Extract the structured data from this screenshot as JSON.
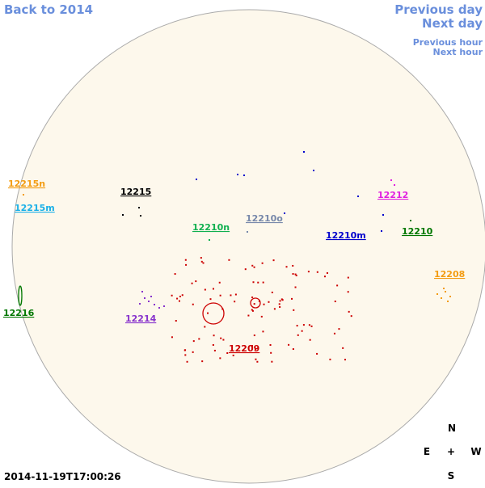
{
  "navigation": {
    "back": "Back to 2014",
    "previous_day": "Previous day",
    "next_day": "Next day",
    "previous_hour": "Previous hour",
    "next_hour": "Next hour"
  },
  "regions": [
    "12215n",
    "12215m",
    "12215",
    "12210n",
    "12210o",
    "12212",
    "12210m",
    "12210",
    "12208",
    "12216",
    "12214",
    "12209"
  ],
  "compass": {
    "north": "N",
    "east": "E",
    "center": "+",
    "west": "W",
    "south": "S"
  },
  "timestamp": "2014-11-19T17:00:26"
}
